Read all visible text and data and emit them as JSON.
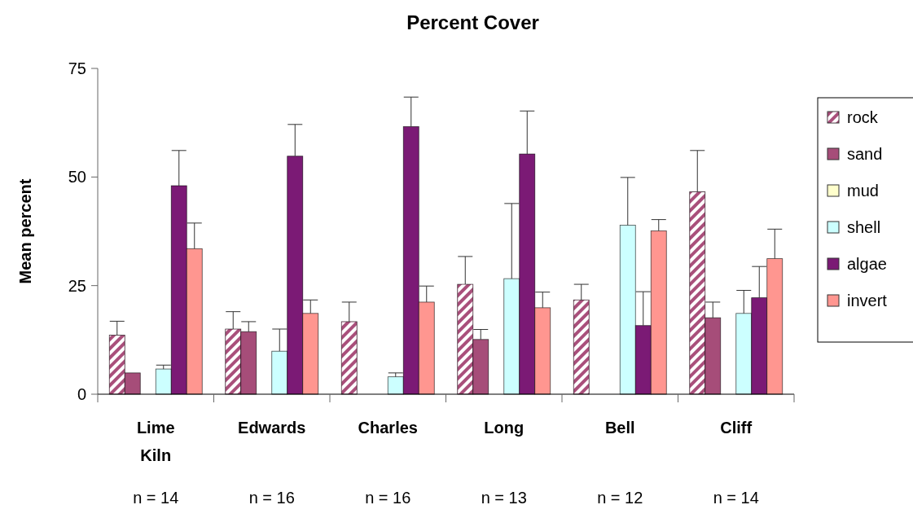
{
  "chart_data": {
    "type": "bar",
    "title": "Percent Cover",
    "ylabel": "Mean percent",
    "categories": [
      "Lime Kiln",
      "Edwards",
      "Charles",
      "Long",
      "Bell",
      "Cliff"
    ],
    "series": [
      {
        "name": "rock",
        "color": "#a94f7b",
        "values": [
          13.6,
          15.0,
          16.7,
          25.3,
          21.7,
          46.6
        ],
        "errors": [
          [
            13.6,
            16.8
          ],
          [
            15.0,
            19.0
          ],
          [
            16.7,
            21.2
          ],
          [
            25.3,
            31.7
          ],
          [
            21.7,
            25.3
          ],
          [
            46.6,
            56.1
          ]
        ]
      },
      {
        "name": "sand",
        "color": "#a64d79",
        "values": [
          4.9,
          14.4,
          0,
          12.6,
          0,
          17.6
        ],
        "errors": [
          null,
          [
            14.4,
            16.7
          ],
          null,
          [
            12.6,
            14.9
          ],
          null,
          [
            17.6,
            21.2
          ]
        ]
      },
      {
        "name": "mud",
        "color": "#ffffcc",
        "values": [
          0,
          0,
          0,
          0,
          0,
          0
        ]
      },
      {
        "name": "shell",
        "color": "#ccffff",
        "values": [
          5.8,
          9.9,
          4.0,
          26.6,
          38.9,
          18.6
        ],
        "errors": [
          [
            5.8,
            6.7
          ],
          [
            9.9,
            15.0
          ],
          [
            4.0,
            4.9
          ],
          [
            26.6,
            43.9
          ],
          [
            38.9,
            49.9
          ],
          [
            18.6,
            23.9
          ]
        ]
      },
      {
        "name": "algae",
        "color": "#7b1a75",
        "values": [
          48.0,
          54.8,
          61.6,
          55.3,
          15.8,
          22.2
        ],
        "errors": [
          [
            48.0,
            56.1
          ],
          [
            54.8,
            62.1
          ],
          [
            61.6,
            68.4
          ],
          [
            55.3,
            65.2
          ],
          [
            15.8,
            23.6
          ],
          [
            22.2,
            29.4
          ]
        ]
      },
      {
        "name": "invert",
        "color": "#ff9690",
        "values": [
          33.5,
          18.6,
          21.2,
          19.9,
          37.6,
          31.2
        ],
        "errors": [
          [
            33.5,
            39.4
          ],
          [
            18.6,
            21.7
          ],
          [
            21.2,
            24.9
          ],
          [
            19.9,
            23.5
          ],
          [
            37.6,
            40.2
          ],
          [
            31.2,
            38.0
          ]
        ]
      }
    ],
    "ylim": [
      0,
      75
    ],
    "yticks": [
      0,
      25,
      50,
      75
    ],
    "grid": false,
    "legend": "right",
    "annotations": [
      "n = 14",
      "n = 16",
      "n = 16",
      "n = 13",
      "n = 12",
      "n = 14"
    ]
  }
}
